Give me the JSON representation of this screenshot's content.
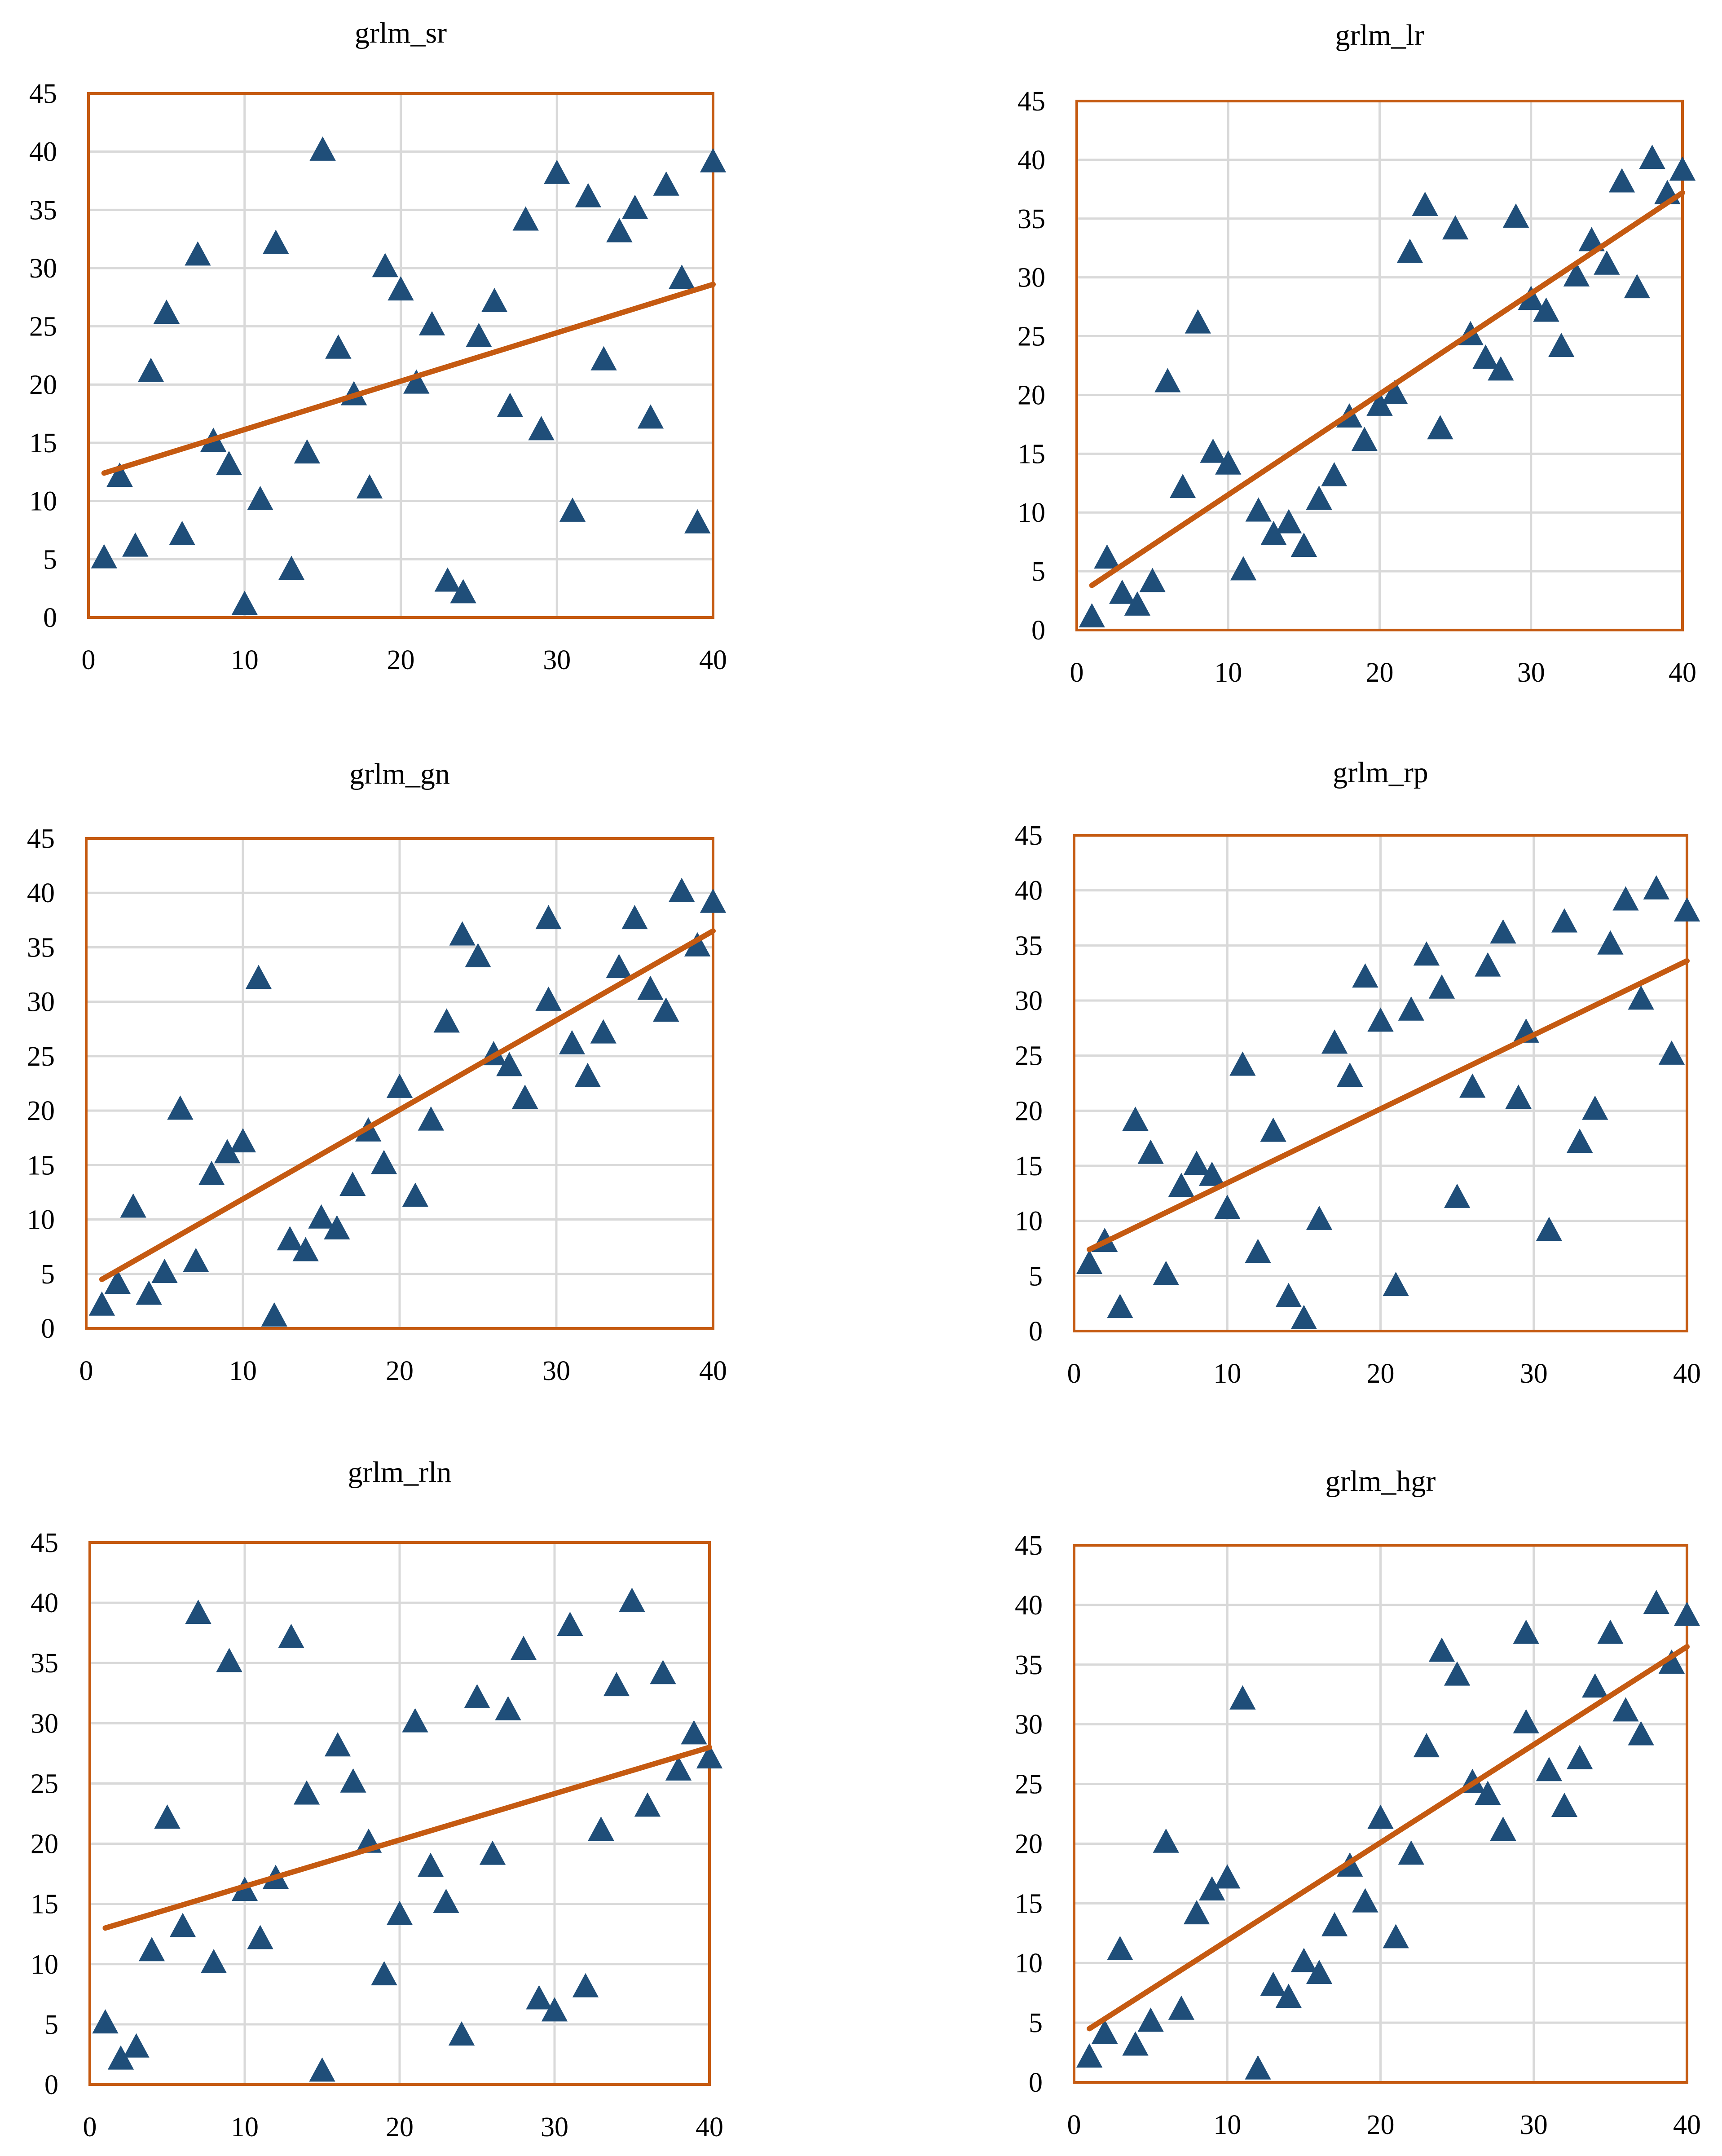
{
  "colors": {
    "marker": "#1f4e79",
    "trend": "#c55a11",
    "frame": "#c55a11",
    "grid": "#d9d9d9"
  },
  "chart_data": [
    {
      "type": "scatter",
      "title": "grlm_sr",
      "xlim": [
        0,
        40
      ],
      "ylim": [
        0,
        45
      ],
      "xticks": [
        0,
        10,
        20,
        30,
        40
      ],
      "yticks": [
        0,
        5,
        10,
        15,
        20,
        25,
        30,
        35,
        40,
        45
      ],
      "grid": true,
      "marker": "triangle",
      "x": [
        1,
        2,
        3,
        4,
        5,
        6,
        7,
        8,
        9,
        10,
        11,
        12,
        13,
        14,
        15,
        16,
        17,
        18,
        19,
        20,
        21,
        22,
        23,
        24,
        25,
        26,
        27,
        28,
        29,
        30,
        31,
        32,
        33,
        34,
        35,
        36,
        37,
        38,
        39,
        40
      ],
      "y": [
        5,
        12,
        6,
        21,
        26,
        7,
        31,
        15,
        13,
        1,
        10,
        32,
        4,
        14,
        40,
        23,
        19,
        11,
        30,
        28,
        20,
        25,
        3,
        2,
        24,
        27,
        18,
        34,
        16,
        38,
        9,
        36,
        22,
        33,
        35,
        17,
        37,
        29,
        8,
        39
      ],
      "trendline": {
        "x": [
          1,
          40
        ],
        "y": [
          12.4,
          28.6
        ]
      }
    },
    {
      "type": "scatter",
      "title": "grlm_lr",
      "xlim": [
        0,
        40
      ],
      "ylim": [
        0,
        45
      ],
      "xticks": [
        0,
        10,
        20,
        30,
        40
      ],
      "yticks": [
        0,
        5,
        10,
        15,
        20,
        25,
        30,
        35,
        40,
        45
      ],
      "grid": true,
      "marker": "triangle",
      "x": [
        1,
        2,
        3,
        4,
        5,
        6,
        7,
        8,
        9,
        10,
        11,
        12,
        13,
        14,
        15,
        16,
        17,
        18,
        19,
        20,
        21,
        22,
        23,
        24,
        25,
        26,
        27,
        28,
        29,
        30,
        31,
        32,
        33,
        34,
        35,
        36,
        37,
        38,
        39,
        40
      ],
      "y": [
        1,
        6,
        3,
        2,
        4,
        21,
        12,
        26,
        15,
        14,
        5,
        10,
        8,
        9,
        7,
        11,
        13,
        18,
        16,
        19,
        20,
        32,
        36,
        17,
        34,
        25,
        23,
        22,
        35,
        28,
        27,
        24,
        30,
        33,
        31,
        38,
        29,
        40,
        37,
        39
      ],
      "trendline": {
        "x": [
          1,
          40
        ],
        "y": [
          3.8,
          37.2
        ]
      }
    },
    {
      "type": "scatter",
      "title": "grlm_gn",
      "xlim": [
        0,
        40
      ],
      "ylim": [
        0,
        45
      ],
      "xticks": [
        0,
        10,
        20,
        30,
        40
      ],
      "yticks": [
        0,
        5,
        10,
        15,
        20,
        25,
        30,
        35,
        40,
        45
      ],
      "grid": true,
      "marker": "triangle",
      "x": [
        1,
        2,
        3,
        4,
        5,
        6,
        7,
        8,
        9,
        10,
        11,
        12,
        13,
        14,
        15,
        16,
        17,
        18,
        19,
        20,
        21,
        22,
        23,
        24,
        25,
        26,
        27,
        28,
        29.5,
        29.5,
        31,
        32,
        33,
        34,
        35,
        36,
        37,
        38,
        39,
        40
      ],
      "y": [
        2,
        4,
        11,
        3,
        5,
        20,
        6,
        14,
        16,
        17,
        32,
        1,
        8,
        7,
        10,
        9,
        13,
        18,
        15,
        22,
        12,
        19,
        28,
        36,
        34,
        25,
        24,
        21,
        37.5,
        30,
        26,
        23,
        27,
        33,
        37.5,
        31,
        29,
        40,
        35,
        39
      ],
      "trendline": {
        "x": [
          1,
          40
        ],
        "y": [
          4.5,
          36.5
        ]
      }
    },
    {
      "type": "scatter",
      "title": "grlm_rp",
      "xlim": [
        0,
        40
      ],
      "ylim": [
        0,
        45
      ],
      "xticks": [
        0,
        10,
        20,
        30,
        40
      ],
      "yticks": [
        0,
        5,
        10,
        15,
        20,
        25,
        30,
        35,
        40,
        45
      ],
      "grid": true,
      "marker": "triangle",
      "x": [
        1,
        2,
        3,
        4,
        5,
        6,
        7,
        8,
        9,
        10,
        11,
        12,
        13,
        14,
        15,
        16,
        17,
        18,
        19,
        20,
        21,
        22,
        23,
        24,
        25,
        26,
        27,
        28,
        29,
        29.5,
        31,
        32,
        33,
        34,
        35,
        36,
        37,
        38,
        39,
        40
      ],
      "y": [
        6,
        8,
        2,
        19,
        16,
        5,
        13,
        15,
        14,
        11,
        24,
        7,
        18,
        3,
        1,
        10,
        26,
        23,
        32,
        28,
        4,
        29,
        34,
        31,
        12,
        22,
        33,
        36,
        21,
        27,
        9,
        37,
        17,
        20,
        35,
        39,
        30,
        40,
        25,
        38
      ],
      "trendline": {
        "x": [
          1,
          40
        ],
        "y": [
          7.4,
          33.6
        ]
      }
    },
    {
      "type": "scatter",
      "title": "grlm_rln",
      "xlim": [
        0,
        40
      ],
      "ylim": [
        0,
        45
      ],
      "xticks": [
        0,
        10,
        20,
        30,
        40
      ],
      "yticks": [
        0,
        5,
        10,
        15,
        20,
        25,
        30,
        35,
        40,
        45
      ],
      "grid": true,
      "marker": "triangle",
      "x": [
        1,
        2,
        3,
        4,
        5,
        6,
        7,
        8,
        9,
        10,
        11,
        12,
        13,
        14,
        15,
        16,
        17,
        18,
        19,
        20,
        21,
        22,
        23,
        24,
        25,
        26,
        27,
        28,
        29,
        30,
        31,
        32,
        33,
        34,
        35,
        36,
        37,
        38,
        39,
        40
      ],
      "y": [
        5,
        2,
        3,
        11,
        22,
        13,
        39,
        10,
        35,
        16,
        12,
        17,
        37,
        24,
        1,
        28,
        25,
        20,
        9,
        14,
        30,
        18,
        15,
        4,
        32,
        19,
        31,
        36,
        7,
        6,
        38,
        8,
        21,
        33,
        40,
        23,
        34,
        26,
        29,
        27
      ],
      "trendline": {
        "x": [
          1,
          40
        ],
        "y": [
          13.0,
          28.0
        ]
      }
    },
    {
      "type": "scatter",
      "title": "grlm_hgr",
      "xlim": [
        0,
        40
      ],
      "ylim": [
        0,
        45
      ],
      "xticks": [
        0,
        10,
        20,
        30,
        40
      ],
      "yticks": [
        0,
        5,
        10,
        15,
        20,
        25,
        30,
        35,
        40,
        45
      ],
      "grid": true,
      "marker": "triangle",
      "x": [
        1,
        2,
        3,
        4,
        5,
        6,
        7,
        8,
        9,
        10,
        11,
        12,
        13,
        14,
        15,
        16,
        17,
        18,
        19,
        20,
        21,
        22,
        23,
        24,
        25,
        26,
        27,
        28,
        29.5,
        29.5,
        31,
        32,
        33,
        34,
        35,
        36,
        37,
        38,
        39,
        40
      ],
      "y": [
        2,
        4,
        11,
        3,
        5,
        20,
        6,
        14,
        16,
        17,
        32,
        1,
        8,
        7,
        10,
        9,
        13,
        18,
        15,
        22,
        12,
        19,
        28,
        36,
        34,
        25,
        24,
        21,
        37.5,
        30,
        26,
        23,
        27,
        33,
        37.5,
        31,
        29,
        40,
        35,
        39
      ],
      "trendline": {
        "x": [
          1,
          40
        ],
        "y": [
          4.5,
          36.5
        ]
      }
    }
  ]
}
